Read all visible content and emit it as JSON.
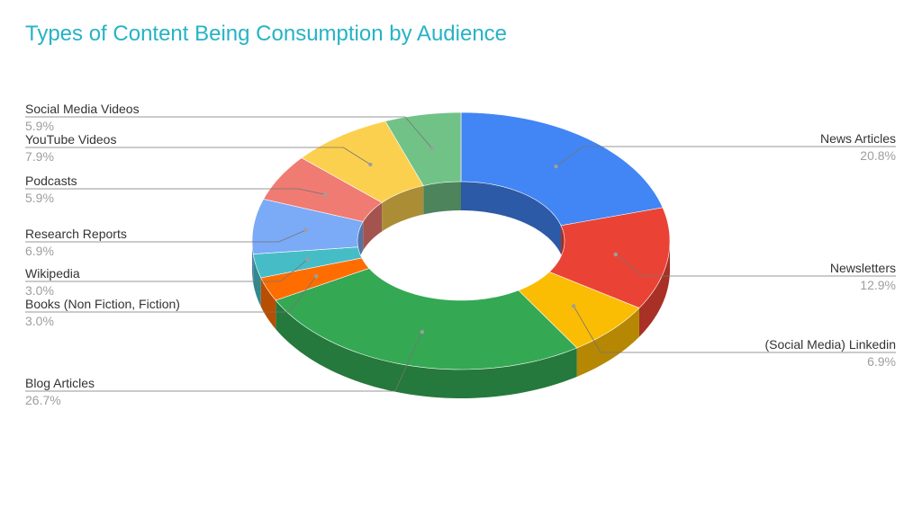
{
  "chart_data": {
    "type": "pie",
    "variant": "3d-donut",
    "title": "Types of Content Being Consumption by Audience",
    "legend": "none",
    "slices": [
      {
        "name": "News Articles",
        "value": 20.8,
        "label": "20.8%",
        "color": "#4285f4"
      },
      {
        "name": "Newsletters",
        "value": 12.9,
        "label": "12.9%",
        "color": "#ea4335"
      },
      {
        "name": "(Social Media) Linkedin",
        "value": 6.9,
        "label": "6.9%",
        "color": "#fbbc04"
      },
      {
        "name": "Blog Articles",
        "value": 26.7,
        "label": "26.7%",
        "color": "#34a853"
      },
      {
        "name": "Books (Non Fiction, Fiction)",
        "value": 3.0,
        "label": "3.0%",
        "color": "#ff6d01"
      },
      {
        "name": "Wikipedia",
        "value": 3.0,
        "label": "3.0%",
        "color": "#46bdc6"
      },
      {
        "name": "Research Reports",
        "value": 6.9,
        "label": "6.9%",
        "color": "#7baaf7"
      },
      {
        "name": "Podcasts",
        "value": 5.9,
        "label": "5.9%",
        "color": "#f07b72"
      },
      {
        "name": "YouTube Videos",
        "value": 7.9,
        "label": "7.9%",
        "color": "#fcd04f"
      },
      {
        "name": "Social Media Videos",
        "value": 5.9,
        "label": "5.9%",
        "color": "#71c287"
      }
    ]
  }
}
